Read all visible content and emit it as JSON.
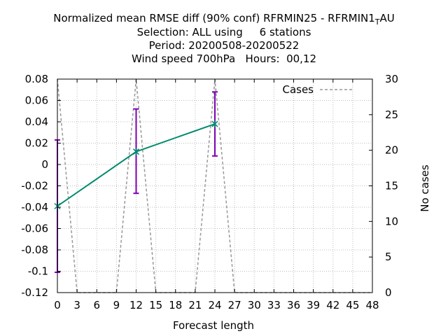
{
  "title_lines": [
    "Normalized mean RMSE diff (90% conf) RFRMIN25 - RFRMIN1_TAU",
    "Selection: ALL using     6 stations",
    "Period: 20200508-20200522",
    "Wind speed 700hPa   Hours:  00,12"
  ],
  "chart_data": {
    "type": "line",
    "title": "Normalized mean RMSE diff (90% conf) RFRMIN25 - RFRMIN1_TAU",
    "subtitle": [
      "Selection: ALL using     6 stations",
      "Period: 20200508-20200522",
      "Wind speed 700hPa   Hours:  00,12"
    ],
    "xlabel": "Forecast length",
    "ylabel": "",
    "y2label": "No cases",
    "xlim": [
      0,
      48
    ],
    "ylim": [
      -0.12,
      0.08
    ],
    "y2lim": [
      0,
      30
    ],
    "xticks": [
      "0",
      "3",
      "6",
      "9",
      "12",
      "15",
      "18",
      "21",
      "24",
      "27",
      "30",
      "33",
      "36",
      "39",
      "42",
      "45",
      "48"
    ],
    "yticks": [
      "-0.12",
      "-0.1",
      "-0.08",
      "-0.06",
      "-0.04",
      "-0.02",
      "0",
      "0.02",
      "0.04",
      "0.06",
      "0.08"
    ],
    "y2ticks": [
      "0",
      "5",
      "10",
      "15",
      "20",
      "25",
      "30"
    ],
    "grid": true,
    "legend_position": "top-right",
    "series": [
      {
        "values_x": [
          0,
          12,
          24
        ],
        "values_y": [
          -0.039,
          0.012,
          0.038
        ],
        "error_low": [
          -0.101,
          -0.027,
          0.008
        ],
        "error_high": [
          0.023,
          0.052,
          0.068
        ],
        "color": "#008b6e",
        "error_color": "#7b00b0",
        "axis": "y1"
      },
      {
        "name": "Cases",
        "values_x": [
          0,
          3,
          9,
          12,
          15,
          21,
          24,
          27,
          48
        ],
        "values_y": [
          30,
          0,
          0,
          30,
          0,
          0,
          30,
          0,
          0
        ],
        "color": "#999999",
        "dash": true,
        "axis": "y2"
      }
    ]
  }
}
